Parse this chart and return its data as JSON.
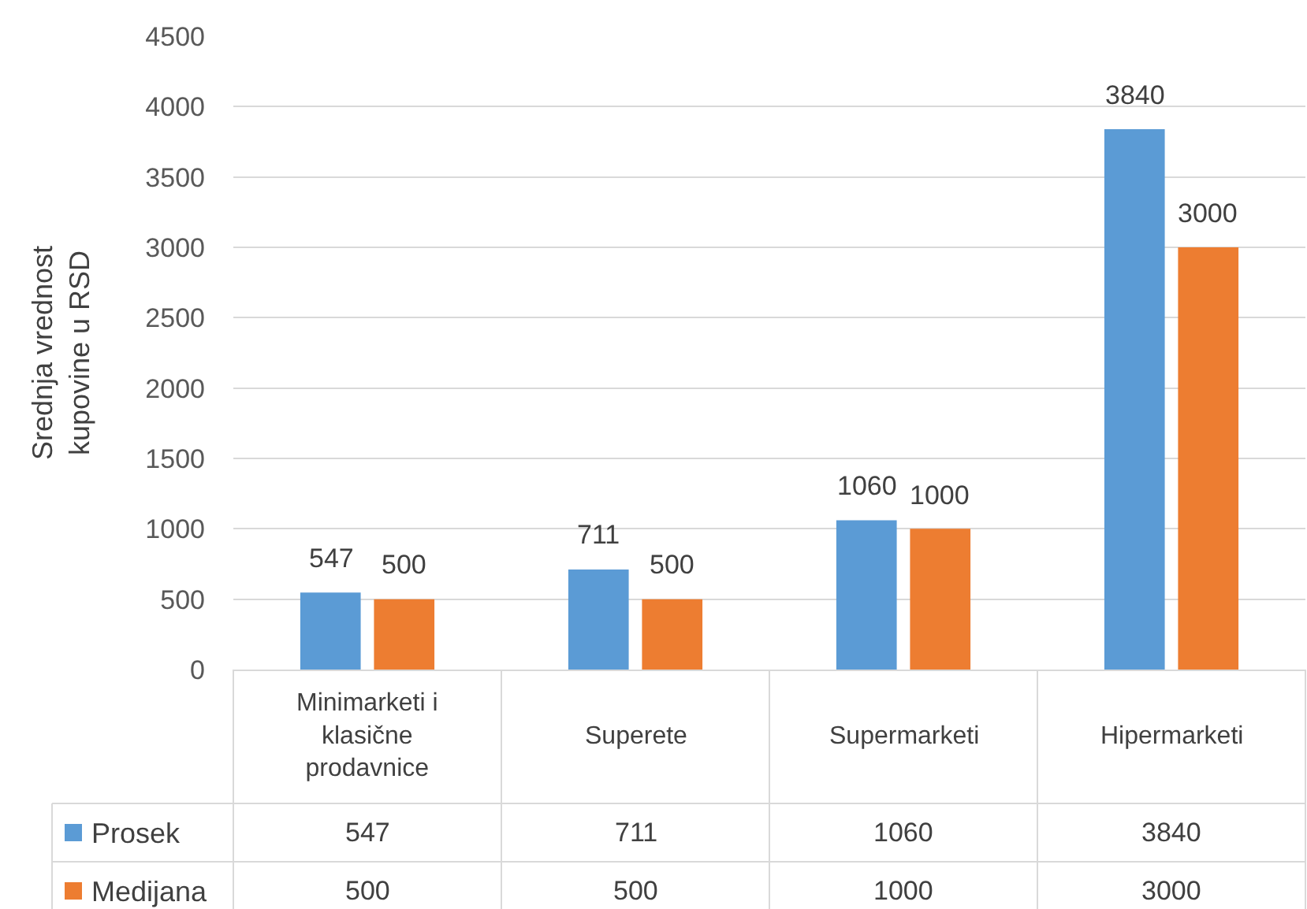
{
  "chart_data": {
    "type": "bar",
    "ylabel": "Srednja vrednost kupovine u RSD",
    "categories": [
      "Minimarketi i klasične prodavnice",
      "Superete",
      "Supermarketi",
      "Hipermarketi"
    ],
    "series": [
      {
        "name": "Prosek",
        "color": "#5b9bd5",
        "values": [
          547,
          711,
          1060,
          3840
        ]
      },
      {
        "name": "Medijana",
        "color": "#ed7d31",
        "values": [
          500,
          500,
          1000,
          3000
        ]
      }
    ],
    "ylim": [
      0,
      4500
    ],
    "yticks": [
      0,
      500,
      1000,
      1500,
      2000,
      2500,
      3000,
      3500,
      4000,
      4500
    ],
    "grid": "y",
    "legend": "bottom",
    "data_labels": true,
    "annotations": [
      {
        "text": "547",
        "x": "Minimarketi i klasične prodavnice",
        "y": 547
      },
      {
        "text": "500",
        "x": "Minimarketi i klasične prodavnice",
        "y": 500
      },
      {
        "text": "711",
        "x": "Superete",
        "y": 711
      },
      {
        "text": "500",
        "x": "Superete",
        "y": 500
      },
      {
        "text": "1060",
        "x": "Supermarketi",
        "y": 1060
      },
      {
        "text": "1000",
        "x": "Supermarketi",
        "y": 1000
      },
      {
        "text": "3840",
        "x": "Hipermarketi",
        "y": 3840
      },
      {
        "text": "3000",
        "x": "Hipermarketi",
        "y": 3000
      }
    ]
  }
}
